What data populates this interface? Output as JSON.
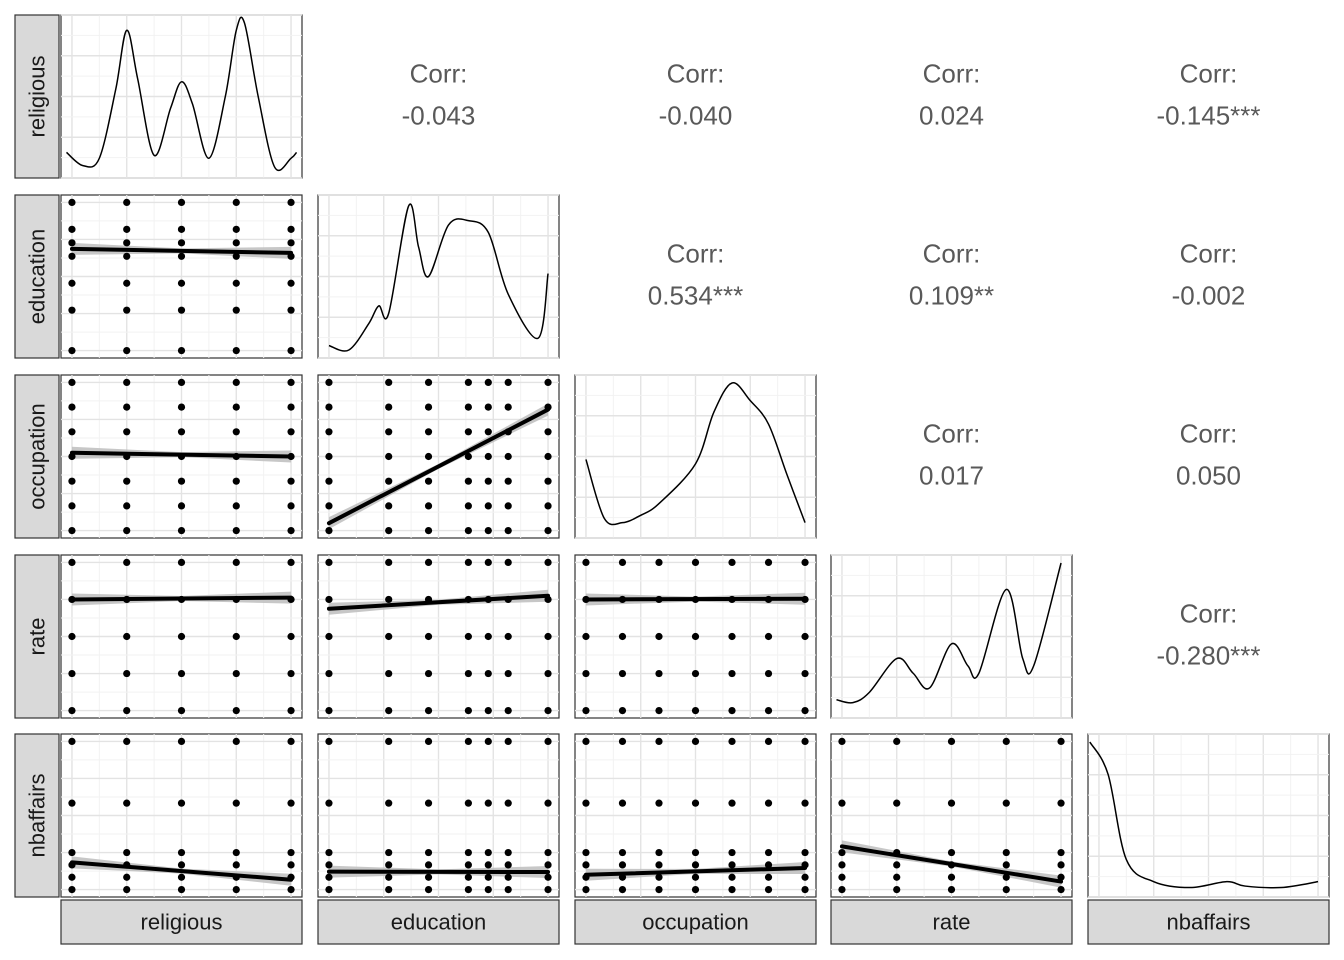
{
  "chart_data": {
    "type": "scatter",
    "variables": [
      "religious",
      "education",
      "occupation",
      "rate",
      "nbaffairs"
    ],
    "correlation_label": "Corr:",
    "correlations": [
      {
        "row": "religious",
        "col": "education",
        "value": "-0.043"
      },
      {
        "row": "religious",
        "col": "occupation",
        "value": "-0.040"
      },
      {
        "row": "religious",
        "col": "rate",
        "value": "0.024"
      },
      {
        "row": "religious",
        "col": "nbaffairs",
        "value": "-0.145***"
      },
      {
        "row": "education",
        "col": "occupation",
        "value": "0.534***"
      },
      {
        "row": "education",
        "col": "rate",
        "value": "0.109**"
      },
      {
        "row": "education",
        "col": "nbaffairs",
        "value": "-0.002"
      },
      {
        "row": "occupation",
        "col": "rate",
        "value": "0.017"
      },
      {
        "row": "occupation",
        "col": "nbaffairs",
        "value": "0.050"
      },
      {
        "row": "rate",
        "col": "nbaffairs",
        "value": "-0.280***"
      }
    ],
    "ranges": {
      "religious": [
        1,
        5
      ],
      "education": [
        9,
        20
      ],
      "occupation": [
        1,
        7
      ],
      "rate": [
        1,
        5
      ],
      "nbaffairs": [
        0,
        12
      ]
    },
    "levels": {
      "religious": [
        1,
        2,
        3,
        4,
        5
      ],
      "education": [
        9,
        12,
        14,
        16,
        17,
        18,
        20
      ],
      "occupation": [
        1,
        2,
        3,
        4,
        5,
        6,
        7
      ],
      "rate": [
        1,
        2,
        3,
        4,
        5
      ],
      "nbaffairs": [
        0,
        1,
        2,
        3,
        7,
        12
      ]
    },
    "densities": {
      "religious": [
        [
          0.9,
          0.12
        ],
        [
          1.2,
          0.03
        ],
        [
          1.5,
          0.08
        ],
        [
          1.8,
          0.55
        ],
        [
          2.0,
          0.95
        ],
        [
          2.2,
          0.62
        ],
        [
          2.5,
          0.1
        ],
        [
          2.8,
          0.42
        ],
        [
          3.0,
          0.6
        ],
        [
          3.2,
          0.45
        ],
        [
          3.5,
          0.08
        ],
        [
          3.8,
          0.5
        ],
        [
          4.0,
          0.95
        ],
        [
          4.15,
          1.0
        ],
        [
          4.4,
          0.5
        ],
        [
          4.7,
          0.02
        ],
        [
          5.0,
          0.08
        ],
        [
          5.1,
          0.12
        ]
      ],
      "education": [
        [
          9,
          0.03
        ],
        [
          10,
          0.0
        ],
        [
          11,
          0.18
        ],
        [
          11.5,
          0.3
        ],
        [
          12,
          0.25
        ],
        [
          13,
          0.98
        ],
        [
          13.5,
          0.7
        ],
        [
          14,
          0.5
        ],
        [
          15,
          0.85
        ],
        [
          16,
          0.88
        ],
        [
          17,
          0.8
        ],
        [
          18,
          0.38
        ],
        [
          19.5,
          0.08
        ],
        [
          20,
          0.52
        ]
      ],
      "occupation": [
        [
          1,
          0.48
        ],
        [
          1.5,
          0.08
        ],
        [
          2,
          0.05
        ],
        [
          2.5,
          0.1
        ],
        [
          3,
          0.18
        ],
        [
          4,
          0.45
        ],
        [
          4.5,
          0.8
        ],
        [
          5,
          1.0
        ],
        [
          5.5,
          0.88
        ],
        [
          6,
          0.72
        ],
        [
          6.5,
          0.38
        ],
        [
          7,
          0.05
        ]
      ],
      "rate": [
        [
          0.9,
          0.07
        ],
        [
          1.2,
          0.05
        ],
        [
          1.5,
          0.12
        ],
        [
          2.0,
          0.35
        ],
        [
          2.3,
          0.25
        ],
        [
          2.6,
          0.15
        ],
        [
          3.0,
          0.45
        ],
        [
          3.3,
          0.3
        ],
        [
          3.5,
          0.25
        ],
        [
          4.0,
          0.82
        ],
        [
          4.3,
          0.35
        ],
        [
          4.5,
          0.3
        ],
        [
          5.0,
          1.0
        ]
      ],
      "nbaffairs": [
        [
          -0.5,
          1.0
        ],
        [
          0.5,
          0.78
        ],
        [
          1.5,
          0.2
        ],
        [
          3,
          0.05
        ],
        [
          5,
          0.01
        ],
        [
          7,
          0.05
        ],
        [
          8,
          0.02
        ],
        [
          10,
          0.01
        ],
        [
          12,
          0.05
        ]
      ]
    },
    "fits": {
      "religious|education": [
        16.55,
        16.25
      ],
      "religious|occupation": [
        4.15,
        4.0
      ],
      "education|occupation": [
        1.3,
        5.9
      ],
      "religious|rate": [
        4.0,
        4.05
      ],
      "education|rate": [
        3.75,
        4.1
      ],
      "occupation|rate": [
        4.0,
        4.02
      ],
      "religious|nbaffairs": [
        2.2,
        0.8
      ],
      "education|nbaffairs": [
        1.45,
        1.42
      ],
      "occupation|nbaffairs": [
        1.2,
        1.75
      ],
      "rate|nbaffairs": [
        3.5,
        0.65
      ]
    }
  }
}
